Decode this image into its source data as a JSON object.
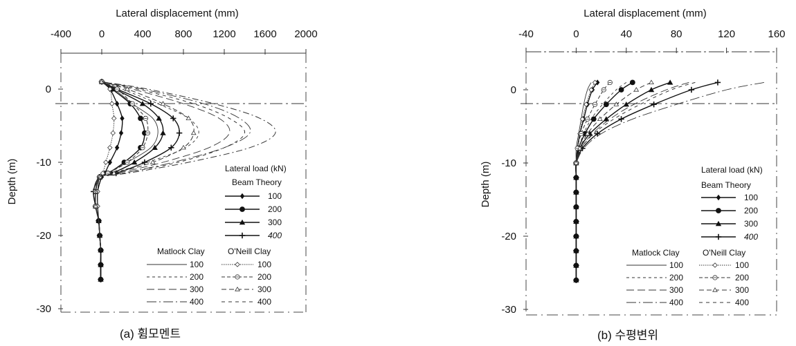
{
  "chart_data": [
    {
      "type": "line",
      "panel_caption": "(a) 휨모멘트",
      "xlabel": "Lateral displacement (mm)",
      "ylabel": "Depth (m)",
      "xlim": [
        -400,
        2000
      ],
      "ylim": [
        -30,
        5
      ],
      "xticks": [
        "-400",
        "0",
        "400",
        "800",
        "1200",
        "1600",
        "2000"
      ],
      "yticks": [
        "0",
        "-10",
        "-20",
        "-30"
      ],
      "ground_line_depth": -2,
      "legend": {
        "title": "Lateral load (kN)",
        "beam_header": "Beam Theory",
        "matlock_header": "Matlock Clay",
        "oneill_header": "O'Neill Clay",
        "loads": [
          "100",
          "200",
          "300",
          "400"
        ]
      },
      "series": [
        {
          "group": "Beam Theory",
          "load": "100",
          "style": "beam",
          "marker": "diamond",
          "x": [
            0,
            80,
            150,
            200,
            190,
            150,
            80,
            30,
            0,
            -40,
            -40,
            -30,
            -20,
            -10,
            -10,
            -10
          ],
          "y": [
            1,
            0,
            -2,
            -4,
            -6,
            -8,
            -10,
            -11.5,
            -12,
            -14,
            -16,
            -18,
            -20,
            -22,
            -24,
            -26
          ]
        },
        {
          "group": "Beam Theory",
          "load": "200",
          "style": "beam",
          "marker": "circle",
          "x": [
            0,
            100,
            280,
            380,
            420,
            380,
            220,
            60,
            -20,
            -60,
            -60,
            -30,
            -20,
            -10,
            -10,
            -10
          ],
          "y": [
            1,
            0,
            -2,
            -4,
            -6,
            -8,
            -10,
            -11.5,
            -12,
            -14,
            -16,
            -18,
            -20,
            -22,
            -24,
            -26
          ]
        },
        {
          "group": "Beam Theory",
          "load": "300",
          "style": "beam",
          "marker": "triangle",
          "x": [
            0,
            130,
            400,
            560,
            600,
            520,
            320,
            100,
            -20,
            -60,
            -60,
            -30,
            -20,
            -10,
            -10,
            -10
          ],
          "y": [
            1,
            0,
            -2,
            -4,
            -6,
            -8,
            -10,
            -11.5,
            -12,
            -14,
            -16,
            -18,
            -20,
            -22,
            -24,
            -26
          ]
        },
        {
          "group": "Beam Theory",
          "load": "400",
          "style": "beam",
          "marker": "plus",
          "x": [
            0,
            150,
            480,
            700,
            760,
            680,
            420,
            140,
            -20,
            -80,
            -60,
            -30,
            -20,
            -10,
            -10,
            -10
          ],
          "y": [
            1,
            0,
            -2,
            -4,
            -6,
            -8,
            -10,
            -11.5,
            -12,
            -14,
            -16,
            -18,
            -20,
            -22,
            -24,
            -26
          ]
        },
        {
          "group": "Matlock Clay",
          "load": "100",
          "style": "matlock",
          "marker": "",
          "x": [
            0,
            120,
            300,
            500,
            550,
            480,
            250,
            50,
            -20,
            -40,
            -40,
            -30,
            -20,
            -10
          ],
          "y": [
            1,
            0,
            -2,
            -4,
            -6,
            -8,
            -10,
            -11.5,
            -12,
            -14,
            -16,
            -18,
            -20,
            -22
          ]
        },
        {
          "group": "Matlock Clay",
          "load": "200",
          "style": "matlock",
          "marker": "",
          "x": [
            0,
            200,
            550,
            850,
            950,
            820,
            450,
            100,
            -20,
            -60,
            -60,
            -30,
            -20,
            -10
          ],
          "y": [
            1,
            0,
            -2,
            -4,
            -6,
            -8,
            -10,
            -11.5,
            -12,
            -14,
            -16,
            -18,
            -20,
            -22
          ]
        },
        {
          "group": "Matlock Clay",
          "load": "300",
          "style": "matlock",
          "marker": "",
          "x": [
            0,
            300,
            800,
            1150,
            1250,
            1050,
            600,
            150,
            -20,
            -60,
            -60,
            -30,
            -20,
            -10
          ],
          "y": [
            1,
            0,
            -2,
            -4,
            -6,
            -8,
            -10,
            -11.5,
            -12,
            -14,
            -16,
            -18,
            -20,
            -22
          ]
        },
        {
          "group": "Matlock Clay",
          "load": "400",
          "style": "matlock",
          "marker": "",
          "x": [
            0,
            400,
            1000,
            1350,
            1450,
            1200,
            700,
            200,
            -20,
            -60,
            -60,
            -30,
            -20,
            -10
          ],
          "y": [
            1,
            0,
            -2,
            -4,
            -6,
            -8,
            -10,
            -11.5,
            -12,
            -14,
            -16,
            -18,
            -20,
            -22
          ]
        },
        {
          "group": "O'Neill Clay",
          "load": "100",
          "style": "oneill",
          "marker": "open-diamond",
          "x": [
            0,
            80,
            100,
            120,
            110,
            80,
            40,
            10,
            -20,
            -40,
            -40
          ],
          "y": [
            1,
            0,
            -2,
            -4,
            -6,
            -8,
            -10,
            -11.5,
            -12,
            -14,
            -16
          ]
        },
        {
          "group": "O'Neill Clay",
          "load": "200",
          "style": "oneill",
          "marker": "open-circle",
          "x": [
            0,
            150,
            300,
            430,
            450,
            400,
            250,
            60,
            -20,
            -60,
            -60
          ],
          "y": [
            1,
            0,
            -2,
            -4,
            -6,
            -8,
            -10,
            -11.5,
            -12,
            -14,
            -16
          ]
        },
        {
          "group": "O'Neill Clay",
          "load": "300",
          "style": "oneill",
          "marker": "open-triangle",
          "x": [
            0,
            250,
            600,
            850,
            900,
            800,
            500,
            120,
            -20,
            -60,
            -60
          ],
          "y": [
            1,
            0,
            -2,
            -4,
            -6,
            -8,
            -10,
            -11.5,
            -12,
            -14,
            -16
          ]
        },
        {
          "group": "O'Neill Clay",
          "load": "400",
          "style": "oneill",
          "marker": "",
          "x": [
            0,
            350,
            900,
            1250,
            1400,
            1200,
            750,
            200,
            -20,
            -60,
            -60
          ],
          "y": [
            1,
            0,
            -2,
            -4,
            -6,
            -8,
            -10,
            -11.5,
            -12,
            -14,
            -16
          ]
        },
        {
          "group": "Beam Theory",
          "load": "400",
          "style": "oneill-upper",
          "marker": "",
          "x": [
            0,
            450,
            1100,
            1550,
            1700,
            1450,
            850,
            250,
            -20,
            -60
          ],
          "y": [
            1,
            0,
            -2,
            -4,
            -6,
            -8,
            -10,
            -11.5,
            -12,
            -14
          ]
        }
      ]
    },
    {
      "type": "line",
      "panel_caption": "(b) 수평변위",
      "xlabel": "Lateral displacement (mm)",
      "ylabel": "Depth (m)",
      "xlim": [
        -40,
        160
      ],
      "ylim": [
        -30,
        5
      ],
      "xticks": [
        "-40",
        "0",
        "40",
        "80",
        "120",
        "160"
      ],
      "yticks": [
        "0",
        "-10",
        "-20",
        "-30"
      ],
      "ground_line_depth": -2,
      "legend": {
        "title": "Lateral load (kN)",
        "beam_header": "Beam Theory",
        "matlock_header": "Matlock Clay",
        "oneill_header": "O'Neill Clay",
        "loads": [
          "100",
          "200",
          "300",
          "400"
        ]
      },
      "series": [
        {
          "group": "Beam Theory",
          "load": "100",
          "style": "beam",
          "marker": "diamond",
          "x": [
            17,
            13,
            9,
            6,
            3,
            1,
            0,
            0,
            0,
            0,
            0,
            0,
            0,
            0,
            0
          ],
          "y": [
            1,
            0,
            -2,
            -4,
            -6,
            -8,
            -10,
            -12,
            -14,
            -16,
            -18,
            -20,
            -22,
            -24,
            -26
          ]
        },
        {
          "group": "Beam Theory",
          "load": "200",
          "style": "beam",
          "marker": "circle",
          "x": [
            45,
            36,
            24,
            14,
            7,
            2,
            0,
            0,
            0,
            0,
            0,
            0,
            0,
            0,
            0
          ],
          "y": [
            1,
            0,
            -2,
            -4,
            -6,
            -8,
            -10,
            -12,
            -14,
            -16,
            -18,
            -20,
            -22,
            -24,
            -26
          ]
        },
        {
          "group": "Beam Theory",
          "load": "300",
          "style": "beam",
          "marker": "triangle",
          "x": [
            75,
            60,
            40,
            24,
            11,
            3,
            0,
            0,
            0,
            0,
            0,
            0,
            0,
            0,
            0
          ],
          "y": [
            1,
            0,
            -2,
            -4,
            -6,
            -8,
            -10,
            -12,
            -14,
            -16,
            -18,
            -20,
            -22,
            -24,
            -26
          ]
        },
        {
          "group": "Beam Theory",
          "load": "400",
          "style": "beam",
          "marker": "plus",
          "x": [
            113,
            92,
            62,
            36,
            17,
            5,
            0,
            0,
            0,
            0,
            0,
            0,
            0,
            0,
            0
          ],
          "y": [
            1,
            0,
            -2,
            -4,
            -6,
            -8,
            -10,
            -12,
            -14,
            -16,
            -18,
            -20,
            -22,
            -24,
            -26
          ]
        },
        {
          "group": "Matlock Clay",
          "load": "100",
          "style": "matlock",
          "marker": "",
          "x": [
            12,
            9,
            6,
            4,
            2,
            0,
            0
          ],
          "y": [
            1,
            0,
            -2,
            -4,
            -6,
            -8,
            -10
          ]
        },
        {
          "group": "Matlock Clay",
          "load": "200",
          "style": "matlock",
          "marker": "",
          "x": [
            40,
            32,
            21,
            12,
            6,
            2,
            0
          ],
          "y": [
            1,
            0,
            -2,
            -4,
            -6,
            -8,
            -10
          ]
        },
        {
          "group": "Matlock Clay",
          "load": "300",
          "style": "matlock",
          "marker": "",
          "x": [
            90,
            72,
            46,
            27,
            13,
            4,
            0
          ],
          "y": [
            1,
            0,
            -2,
            -4,
            -6,
            -8,
            -10
          ]
        },
        {
          "group": "Matlock Clay",
          "load": "400",
          "style": "matlock",
          "marker": "",
          "x": [
            150,
            120,
            80,
            45,
            20,
            6,
            0
          ],
          "y": [
            1,
            0,
            -2,
            -4,
            -6,
            -8,
            -10
          ]
        },
        {
          "group": "O'Neill Clay",
          "load": "100",
          "style": "oneill",
          "marker": "open-diamond",
          "x": [
            15,
            12,
            8,
            5,
            3,
            1,
            0
          ],
          "y": [
            1,
            0,
            -2,
            -4,
            -6,
            -8,
            -10
          ]
        },
        {
          "group": "O'Neill Clay",
          "load": "200",
          "style": "oneill",
          "marker": "open-circle",
          "x": [
            27,
            22,
            15,
            9,
            4,
            1,
            0
          ],
          "y": [
            1,
            0,
            -2,
            -4,
            -6,
            -8,
            -10
          ]
        },
        {
          "group": "O'Neill Clay",
          "load": "300",
          "style": "oneill",
          "marker": "open-triangle",
          "x": [
            60,
            48,
            32,
            19,
            9,
            3,
            0
          ],
          "y": [
            1,
            0,
            -2,
            -4,
            -6,
            -8,
            -10
          ]
        },
        {
          "group": "O'Neill Clay",
          "load": "400",
          "style": "oneill",
          "marker": "",
          "x": [
            95,
            76,
            51,
            30,
            14,
            4,
            0
          ],
          "y": [
            1,
            0,
            -2,
            -4,
            -6,
            -8,
            -10
          ]
        }
      ]
    }
  ]
}
